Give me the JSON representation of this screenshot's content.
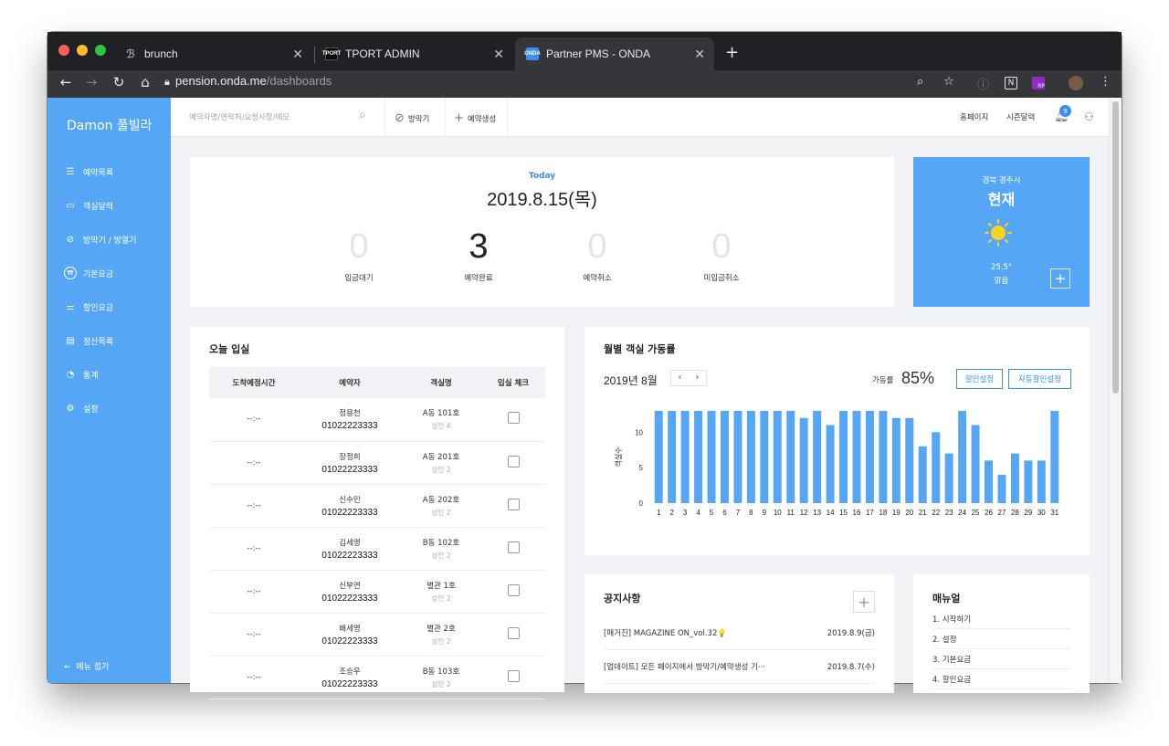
{
  "browser": {
    "tabs": [
      {
        "title": "brunch",
        "favicon": "brunch-icon",
        "active": false
      },
      {
        "title": "TPORT ADMIN",
        "favicon": "tport-icon",
        "active": false
      },
      {
        "title": "Partner PMS - ONDA",
        "favicon": "onda-icon",
        "active": true
      }
    ],
    "onda_favicon_text": "ONDA",
    "tport_favicon_text": "TPORT",
    "url_host": "pension.onda.me",
    "url_path": "/dashboards",
    "ext_rp_text": "RP",
    "new_tab_symbol": "+"
  },
  "sidebar": {
    "brand": "Damon 풀빌라",
    "items": [
      {
        "label": "예약목록",
        "icon": "list-icon"
      },
      {
        "label": "객실달력",
        "icon": "calendar-icon"
      },
      {
        "label": "방막기 / 방열기",
        "icon": "block-icon"
      },
      {
        "label": "기본요금",
        "icon": "won-icon"
      },
      {
        "label": "할인요금",
        "icon": "sliders-icon"
      },
      {
        "label": "정산목록",
        "icon": "ledger-icon"
      },
      {
        "label": "통계",
        "icon": "pie-chart-icon"
      },
      {
        "label": "설정",
        "icon": "gear-icon"
      }
    ],
    "fold_label": "메뉴 접기"
  },
  "topbar": {
    "search_placeholder": "예약자명/연락처/요청사항/메모",
    "block_label": "방막기",
    "create_label": "예약생성",
    "homepage_label": "홈페이지",
    "season_label": "시즌달력",
    "notification_count": "9"
  },
  "today": {
    "label": "Today",
    "date": "2019.8.15(목)",
    "stats": [
      {
        "value": "0",
        "label": "입금대기",
        "strong": false
      },
      {
        "value": "3",
        "label": "예약완료",
        "strong": true
      },
      {
        "value": "0",
        "label": "예약취소",
        "strong": false
      },
      {
        "value": "0",
        "label": "미입금취소",
        "strong": false
      }
    ]
  },
  "weather": {
    "location": "경북 경주시",
    "title": "현재",
    "temperature": "25.5°",
    "condition": "맑음",
    "icon": "sun-icon"
  },
  "checkin": {
    "title": "오늘 입실",
    "columns": [
      "도착예정시간",
      "예약자",
      "객실명",
      "입실 체크"
    ],
    "rows": [
      {
        "time": "--:--",
        "name": "정용천",
        "phone": "01022223333",
        "room": "A동 101호",
        "guests": "성인 4"
      },
      {
        "time": "--:--",
        "name": "장정희",
        "phone": "01022223333",
        "room": "A동 201호",
        "guests": "성인 2"
      },
      {
        "time": "--:--",
        "name": "신수민",
        "phone": "01022223333",
        "room": "A동 202호",
        "guests": "성인 2"
      },
      {
        "time": "--:--",
        "name": "김세영",
        "phone": "01022223333",
        "room": "B동 102호",
        "guests": "성인 2"
      },
      {
        "time": "--:--",
        "name": "신부연",
        "phone": "01022223333",
        "room": "별관 1호",
        "guests": "성인 2"
      },
      {
        "time": "--:--",
        "name": "배세영",
        "phone": "01022223333",
        "room": "별관 2호",
        "guests": "성인 2"
      },
      {
        "time": "--:--",
        "name": "조승우",
        "phone": "01022223333",
        "room": "B동 103호",
        "guests": "성인 2"
      }
    ]
  },
  "occupancy": {
    "title": "월별 객실 가동률",
    "month": "2019년 8월",
    "rate_label": "가동률",
    "rate_value": "85%",
    "discount_button": "할인설정",
    "auto_discount_button": "자동할인설정"
  },
  "chart_data": {
    "type": "bar",
    "categories": [
      "1",
      "2",
      "3",
      "4",
      "5",
      "6",
      "7",
      "8",
      "9",
      "10",
      "11",
      "12",
      "13",
      "14",
      "15",
      "16",
      "17",
      "18",
      "19",
      "20",
      "21",
      "22",
      "23",
      "24",
      "25",
      "26",
      "27",
      "28",
      "29",
      "30",
      "31"
    ],
    "values": [
      13,
      13,
      13,
      13,
      13,
      13,
      13,
      13,
      13,
      13,
      13,
      12,
      13,
      11,
      13,
      13,
      13,
      13,
      12,
      12,
      8,
      10,
      7,
      13,
      11,
      6,
      4,
      7,
      6,
      6,
      13
    ],
    "title": "",
    "xlabel": "",
    "ylabel": "객실수",
    "ylim": [
      0,
      13
    ],
    "yticks": [
      "0",
      "5",
      "10"
    ],
    "bar_color": "#55a6f5",
    "grid": false,
    "legend": "none"
  },
  "notices": {
    "title": "공지사항",
    "items": [
      {
        "title": "[매거진] MAGAZINE ON_vol.32💡",
        "date": "2019.8.9(금)"
      },
      {
        "title": "[업데이트] 모든 페이지에서 방막기/예약생성 기···",
        "date": "2019.8.7(수)"
      }
    ]
  },
  "manual": {
    "title": "매뉴얼",
    "items": [
      "1. 시작하기",
      "2. 설정",
      "3. 기본요금",
      "4. 할인요금"
    ]
  },
  "colors": {
    "accent": "#55a6f5",
    "link_blue": "#3a8ef0"
  }
}
